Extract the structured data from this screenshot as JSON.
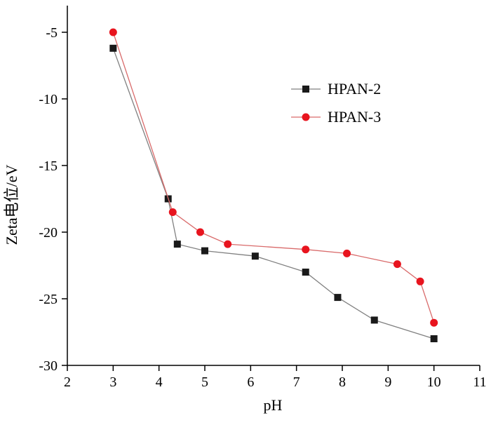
{
  "chart_data": {
    "type": "line",
    "xlabel": "pH",
    "ylabel": "Zeta电位/eV",
    "xlim": [
      2,
      11
    ],
    "ylim": [
      -30,
      -3
    ],
    "x_ticks": [
      2,
      3,
      4,
      5,
      6,
      7,
      8,
      9,
      10,
      11
    ],
    "y_ticks": [
      -5,
      -10,
      -15,
      -20,
      -25,
      -30
    ],
    "grid": false,
    "legend_position": "upper-right",
    "series": [
      {
        "name": "HPAN-2",
        "marker": "square",
        "line_color": "#808080",
        "marker_color": "#1a1a1a",
        "x": [
          3,
          4.2,
          4.4,
          5,
          6.1,
          7.2,
          7.9,
          8.7,
          10
        ],
        "y": [
          -6.2,
          -17.5,
          -20.9,
          -21.4,
          -21.8,
          -23,
          -24.9,
          -26.6,
          -28
        ]
      },
      {
        "name": "HPAN-3",
        "marker": "circle",
        "line_color": "#d96b6b",
        "marker_color": "#e8141e",
        "x": [
          3,
          4.3,
          4.9,
          5.5,
          7.2,
          8.1,
          9.2,
          9.7,
          10
        ],
        "y": [
          -5,
          -18.5,
          -20,
          -20.9,
          -21.3,
          -21.6,
          -22.4,
          -23.7,
          -26.8
        ]
      }
    ]
  }
}
